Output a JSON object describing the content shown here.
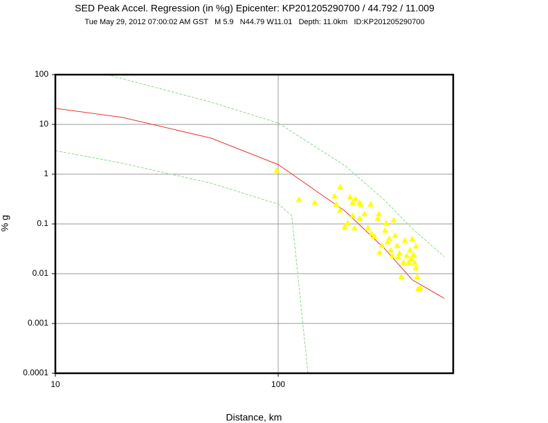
{
  "chart_data": {
    "type": "scatter",
    "title": "SED Peak Accel. Regression (in %g) Epicenter: KP201205290700 / 44.792 / 11.009",
    "subtitle": "Tue May 29, 2012 07:00:02 AM GST   M 5.9   N44.79 W11.01   Depth: 11.0km   ID:KP201205290700",
    "x_label": "Distance, km",
    "y_label": "% g",
    "xlog": true,
    "ylog": true,
    "grid": true,
    "xlim": [
      10,
      610
    ],
    "ylim": [
      0.0001,
      100
    ],
    "xticks": [
      10,
      100
    ],
    "yticks": [
      100,
      10,
      1,
      0.1,
      0.01,
      0.001,
      0.0001
    ],
    "lines": [
      {
        "color": "#e8322f",
        "dashed": false,
        "x": [
          10,
          20,
          50,
          100,
          200,
          300,
          400,
          556
        ],
        "y": [
          21,
          13.8,
          5.3,
          1.56,
          0.18,
          0.032,
          0.0075,
          0.0032
        ]
      },
      {
        "color": "#8fd88f",
        "dashed": true,
        "x": [
          17.1,
          50,
          100,
          200,
          300,
          400,
          556
        ],
        "y": [
          100,
          28,
          10.7,
          1.47,
          0.3,
          0.08,
          0.022
        ]
      },
      {
        "color": "#8fd88f",
        "dashed": true,
        "x": [
          10,
          20,
          50,
          100,
          115,
          136
        ],
        "y": [
          2.97,
          1.66,
          0.66,
          0.25,
          0.147,
          0.0001
        ]
      }
    ],
    "points": {
      "color": "#ffff00",
      "x": [
        98.6,
        124,
        146,
        190,
        179,
        182,
        189,
        199,
        205,
        210,
        216,
        222,
        232,
        216,
        220,
        232,
        235,
        244,
        253,
        260,
        262,
        270,
        280,
        283,
        285,
        293,
        302,
        305,
        310,
        315,
        320,
        325,
        330,
        335,
        342,
        345,
        350,
        357,
        365,
        370,
        378,
        385,
        390,
        395,
        400,
        405,
        410,
        415,
        415,
        420,
        425,
        435
      ],
      "y": [
        1.2,
        0.31,
        0.27,
        0.56,
        0.37,
        0.25,
        0.19,
        0.088,
        0.105,
        0.35,
        0.27,
        0.32,
        0.27,
        0.147,
        0.083,
        0.13,
        0.25,
        0.16,
        0.083,
        0.25,
        0.064,
        0.056,
        0.13,
        0.16,
        0.027,
        0.037,
        0.075,
        0.105,
        0.044,
        0.051,
        0.03,
        0.023,
        0.12,
        0.059,
        0.037,
        0.022,
        0.026,
        0.0087,
        0.017,
        0.047,
        0.023,
        0.017,
        0.03,
        0.02,
        0.05,
        0.024,
        0.017,
        0.036,
        0.013,
        0.0087,
        0.005,
        0.0052
      ]
    }
  }
}
